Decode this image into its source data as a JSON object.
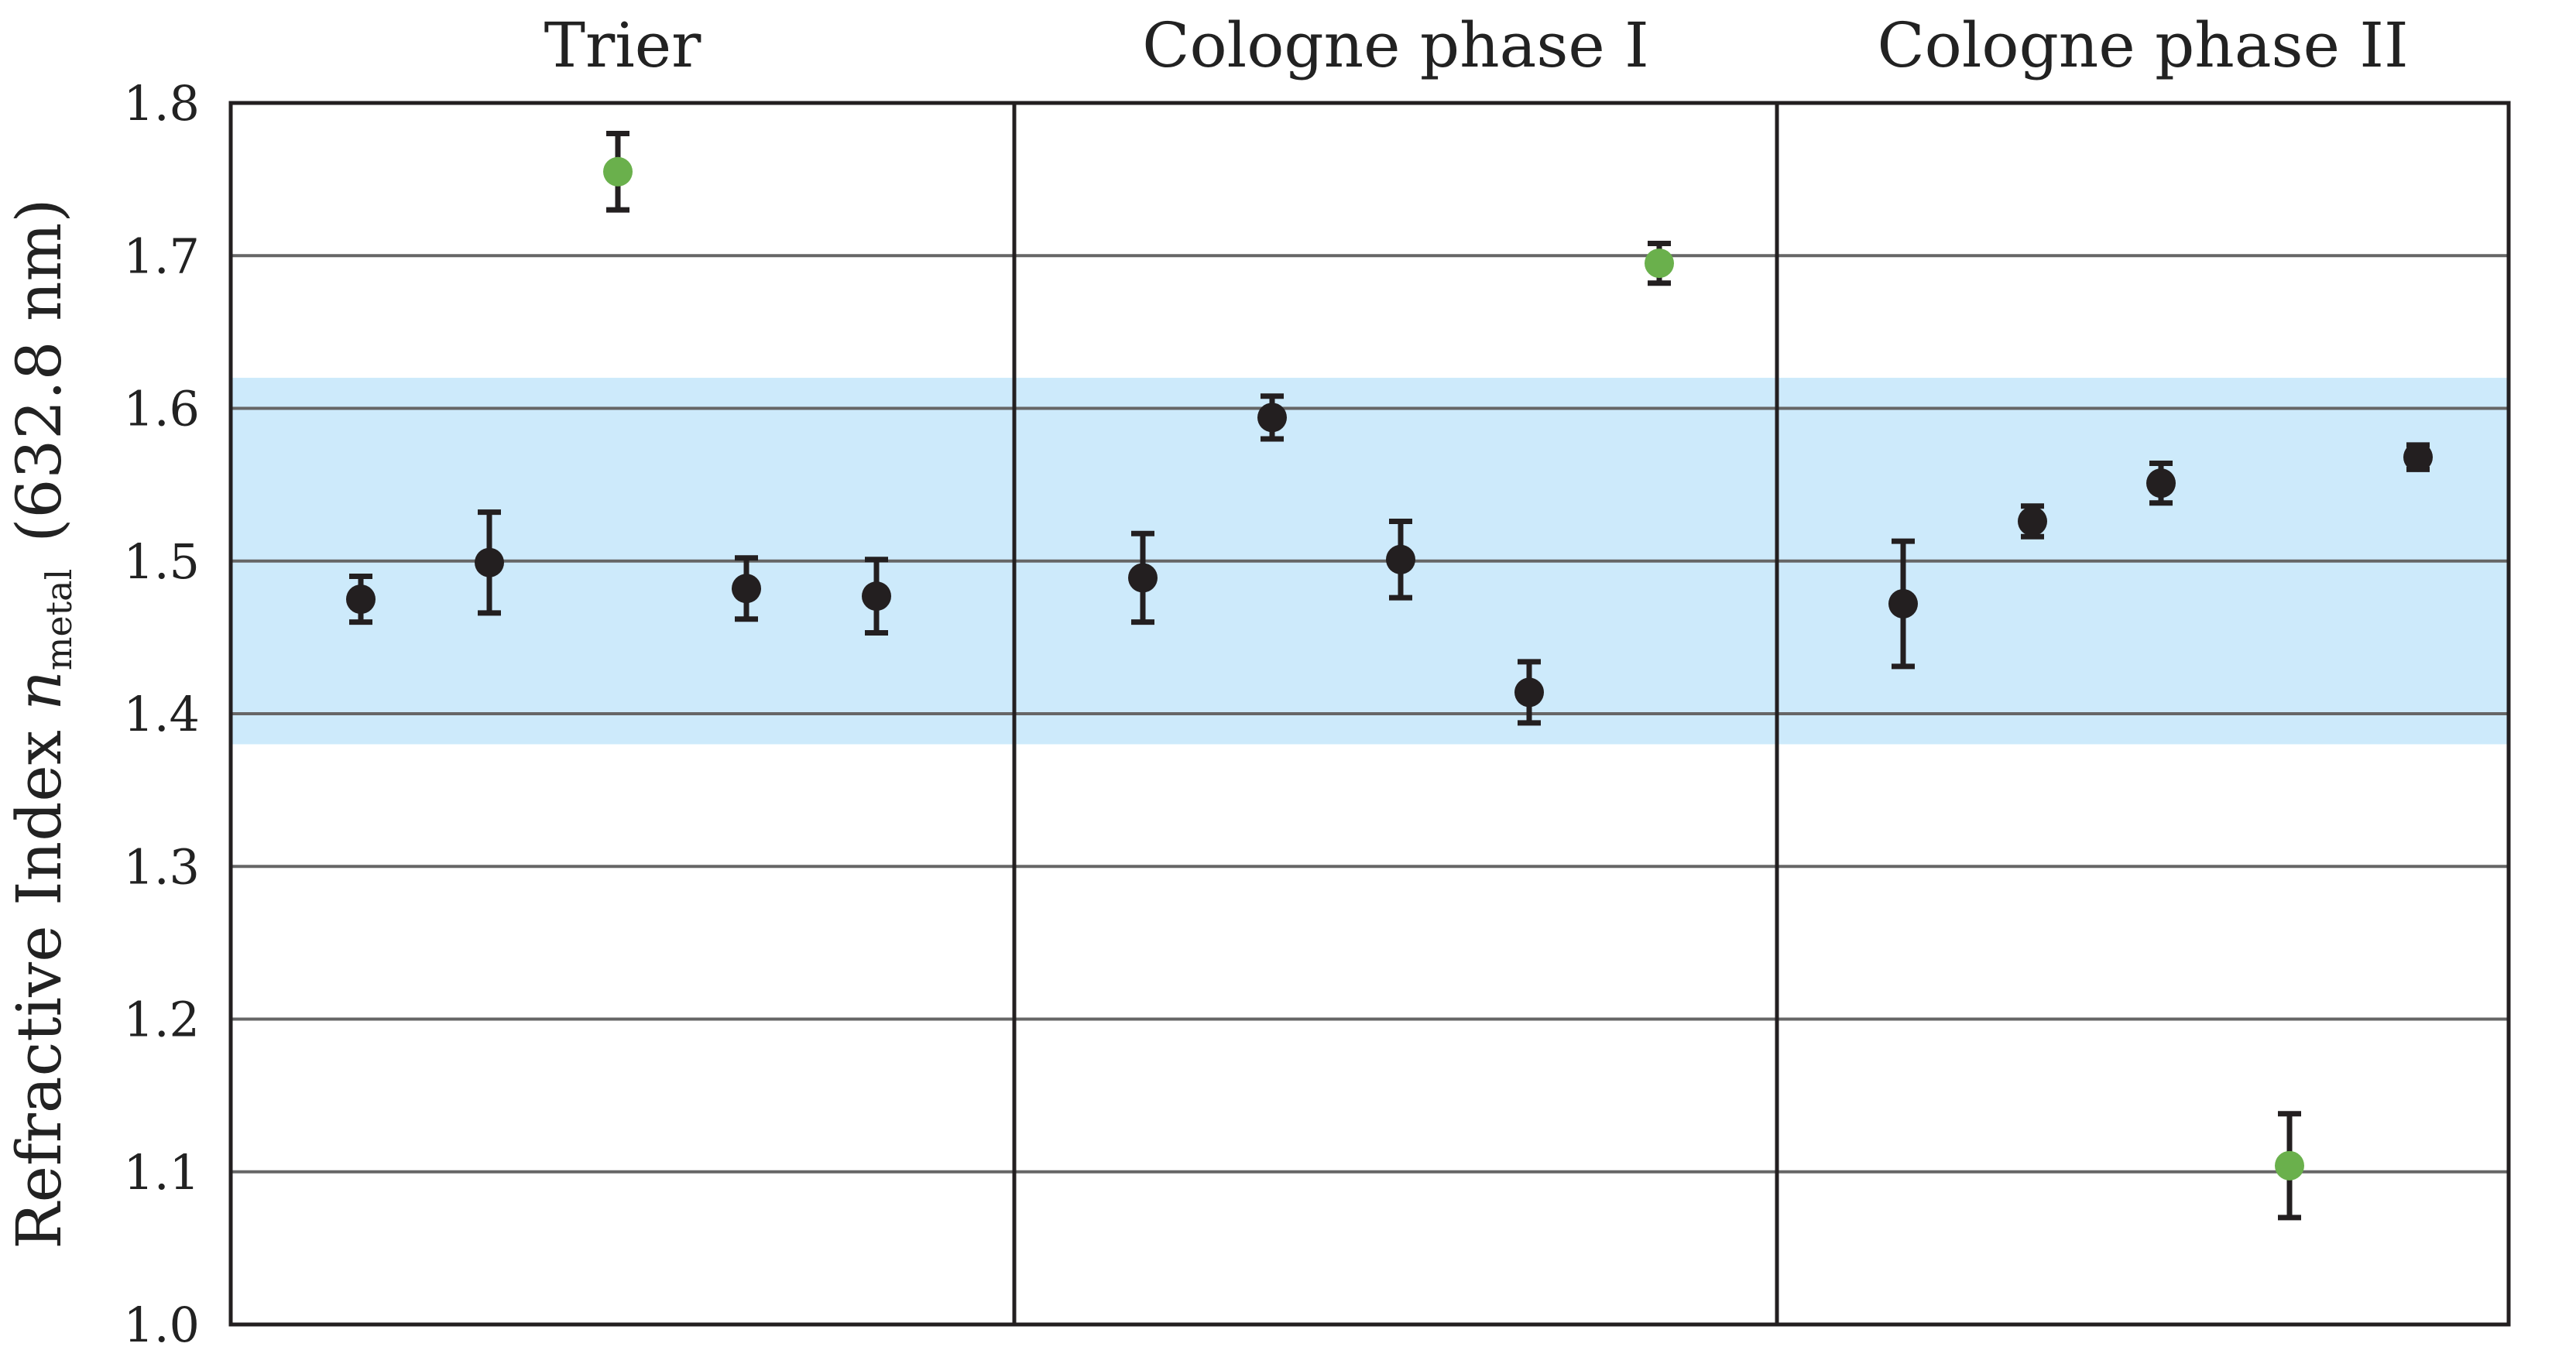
{
  "chart_data": {
    "type": "scatter",
    "ylabel": {
      "prefix": "Refractive Index ",
      "symbol": "n",
      "subscript": "metal",
      "suffix": "(632.8 nm)"
    },
    "ylim": [
      1.0,
      1.8
    ],
    "yticks": [
      "1.0",
      "1.1",
      "1.2",
      "1.3",
      "1.4",
      "1.5",
      "1.6",
      "1.7",
      "1.8"
    ],
    "grid": true,
    "reference_band": {
      "low": 1.38,
      "high": 1.62,
      "color": "#cdeafb"
    },
    "colors": {
      "normal": "#231f20",
      "outlier": "#6ab04c",
      "gridline": "#666666",
      "frame": "#231f20"
    },
    "panels": [
      {
        "title": "Trier",
        "points": [
          {
            "y": 1.475,
            "err": 0.015,
            "outlier": false
          },
          {
            "y": 1.499,
            "err": 0.033,
            "outlier": false
          },
          {
            "y": 1.755,
            "err": 0.025,
            "outlier": true
          },
          {
            "y": 1.482,
            "err": 0.02,
            "outlier": false
          },
          {
            "y": 1.477,
            "err": 0.024,
            "outlier": false
          }
        ]
      },
      {
        "title": "Cologne phase I",
        "points": [
          {
            "y": 1.489,
            "err": 0.029,
            "outlier": false
          },
          {
            "y": 1.594,
            "err": 0.014,
            "outlier": false
          },
          {
            "y": 1.501,
            "err": 0.025,
            "outlier": false
          },
          {
            "y": 1.414,
            "err": 0.02,
            "outlier": false
          },
          {
            "y": 1.695,
            "err": 0.013,
            "outlier": true
          }
        ]
      },
      {
        "title": "Cologne phase II",
        "points": [
          {
            "y": 1.472,
            "err": 0.041,
            "outlier": false
          },
          {
            "y": 1.526,
            "err": 0.01,
            "outlier": false
          },
          {
            "y": 1.551,
            "err": 0.013,
            "outlier": false
          },
          {
            "y": 1.104,
            "err": 0.034,
            "outlier": true
          },
          {
            "y": 1.568,
            "err": 0.008,
            "outlier": false
          }
        ]
      }
    ]
  }
}
